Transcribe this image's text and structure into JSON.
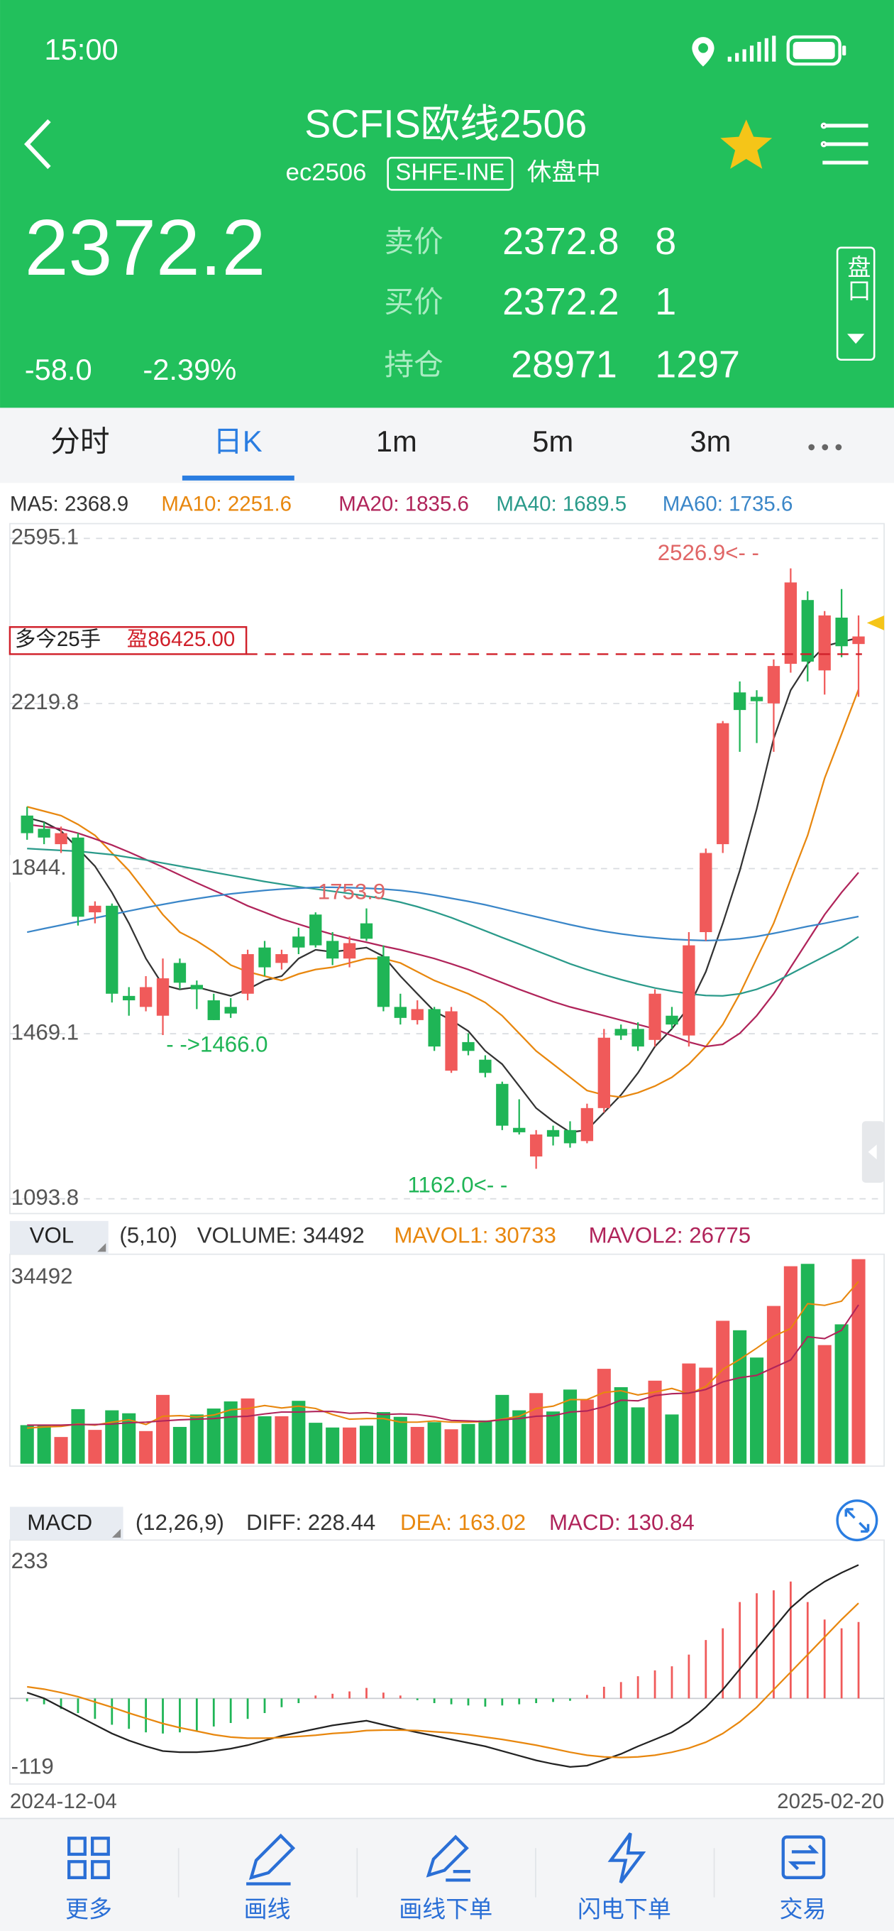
{
  "status_bar": {
    "time": "15:00"
  },
  "header": {
    "title": "SCFIS欧线2506",
    "code": "ec2506",
    "exchange": "SHFE-INE",
    "status": "休盘中"
  },
  "quote": {
    "last": 2372.2,
    "change": "-58.0",
    "change_pct": "-2.39%",
    "ask_label": "卖价",
    "ask": 2372.8,
    "ask_vol": 8,
    "bid_label": "买价",
    "bid": 2372.2,
    "bid_vol": 1,
    "oi_label": "持仓",
    "oi": 28971,
    "oi_change": 1297,
    "depth_button": "盘口"
  },
  "tabs": [
    "分时",
    "日K",
    "1m",
    "5m",
    "3m"
  ],
  "chart_data": [
    {
      "type": "candlestick",
      "categories": [
        "2024-12-04",
        null,
        null,
        null,
        null,
        null,
        null,
        null,
        null,
        null,
        null,
        null,
        null,
        null,
        null,
        null,
        null,
        null,
        null,
        null,
        null,
        null,
        null,
        null,
        null,
        null,
        null,
        null,
        null,
        null,
        null,
        null,
        null,
        null,
        null,
        null,
        null,
        null,
        null,
        null,
        null,
        null,
        null,
        null,
        null,
        null,
        null,
        null,
        null,
        "2025-02-20"
      ],
      "open": [
        1965,
        1935,
        1900,
        1915,
        1745,
        1760,
        1555,
        1530,
        1510,
        1630,
        1580,
        1545,
        1530,
        1560,
        1665,
        1630,
        1690,
        1740,
        1680,
        1640,
        1720,
        1645,
        1530,
        1500,
        1525,
        1385,
        1450,
        1410,
        1355,
        1255,
        1190,
        1250,
        1250,
        1225,
        1300,
        1480,
        1480,
        1455,
        1510,
        1465,
        1700,
        1900,
        2245,
        2235,
        2220,
        2310,
        2455,
        2295,
        2415,
        2355
      ],
      "high": [
        1985,
        1950,
        1940,
        1925,
        1770,
        1765,
        1575,
        1600,
        1640,
        1640,
        1590,
        1560,
        1550,
        1660,
        1680,
        1660,
        1710,
        1745,
        1700,
        1690,
        1753.9,
        1670,
        1560,
        1545,
        1530,
        1530,
        1470,
        1420,
        1360,
        1320,
        1250,
        1260,
        1270,
        1310,
        1480,
        1490,
        1495,
        1570,
        1530,
        1700,
        1890,
        2180,
        2270,
        2250,
        2320,
        2526.9,
        2475,
        2430,
        2480,
        2420
      ],
      "low": [
        1910,
        1900,
        1880,
        1715,
        1720,
        1540,
        1510,
        1520,
        1466.0,
        1570,
        1525,
        1500,
        1505,
        1545,
        1600,
        1615,
        1650,
        1665,
        1625,
        1620,
        1680,
        1520,
        1490,
        1490,
        1430,
        1380,
        1420,
        1370,
        1250,
        1240,
        1162.0,
        1215,
        1210,
        1220,
        1290,
        1455,
        1430,
        1440,
        1480,
        1440,
        1680,
        1880,
        2110,
        2130,
        2110,
        2290,
        2270,
        2240,
        2325,
        2235
      ],
      "close": [
        1925,
        1915,
        1925,
        1735,
        1760,
        1560,
        1545,
        1575,
        1595,
        1585,
        1570,
        1500,
        1515,
        1650,
        1620,
        1650,
        1665,
        1670,
        1640,
        1675,
        1685,
        1530,
        1505,
        1525,
        1440,
        1520,
        1430,
        1380,
        1260,
        1245,
        1240,
        1235,
        1220,
        1300,
        1460,
        1465,
        1440,
        1560,
        1490,
        1670,
        1880,
        2175,
        2205,
        2225,
        2305,
        2495,
        2315,
        2420,
        2350,
        2372.2
      ],
      "up_color": "#f05a5a",
      "down_color": "#1fb556",
      "ylim": [
        1093.8,
        2595.1
      ],
      "yticks": [
        1093.8,
        1469.1,
        {
          "value": 1844.4,
          "label": "1844."
        },
        2219.8,
        2595.1
      ],
      "grid": true,
      "series": [
        {
          "name": "MA5: 2368.9",
          "color": "#333333",
          "values": [
            1960,
            1950,
            1930,
            1890,
            1850,
            1790,
            1720,
            1640,
            1580,
            1570,
            1575,
            1565,
            1555,
            1570,
            1590,
            1600,
            1640,
            1660,
            1655,
            1660,
            1665,
            1645,
            1600,
            1560,
            1520,
            1500,
            1475,
            1430,
            1400,
            1350,
            1300,
            1270,
            1245,
            1250,
            1290,
            1330,
            1380,
            1440,
            1480,
            1530,
            1610,
            1720,
            1840,
            1980,
            2140,
            2250,
            2310,
            2350,
            2360,
            2368.9
          ]
        },
        {
          "name": "MA10: 2251.6",
          "color": "#e8870e",
          "values": [
            1985,
            1975,
            1965,
            1945,
            1920,
            1880,
            1840,
            1790,
            1740,
            1700,
            1680,
            1655,
            1625,
            1610,
            1600,
            1590,
            1605,
            1615,
            1620,
            1630,
            1640,
            1640,
            1630,
            1610,
            1590,
            1575,
            1560,
            1540,
            1510,
            1470,
            1430,
            1400,
            1370,
            1340,
            1330,
            1325,
            1335,
            1350,
            1370,
            1400,
            1440,
            1490,
            1560,
            1640,
            1720,
            1820,
            1920,
            2050,
            2150,
            2251.6
          ]
        },
        {
          "name": "MA20: 1835.6",
          "color": "#b0245a",
          "values": [
            1945,
            1940,
            1935,
            1925,
            1912,
            1898,
            1882,
            1865,
            1848,
            1830,
            1812,
            1795,
            1778,
            1760,
            1745,
            1730,
            1718,
            1706,
            1695,
            1685,
            1677,
            1668,
            1660,
            1650,
            1640,
            1628,
            1615,
            1600,
            1585,
            1570,
            1556,
            1542,
            1530,
            1520,
            1510,
            1500,
            1490,
            1480,
            1465,
            1450,
            1440,
            1445,
            1470,
            1510,
            1560,
            1620,
            1680,
            1740,
            1790,
            1835.6
          ]
        },
        {
          "name": "MA40: 1689.5",
          "color": "#2a9a8a",
          "values": [
            1890,
            1888,
            1886,
            1884,
            1880,
            1876,
            1870,
            1864,
            1857,
            1850,
            1843,
            1836,
            1829,
            1822,
            1815,
            1809,
            1803,
            1798,
            1793,
            1788,
            1782,
            1776,
            1768,
            1758,
            1746,
            1733,
            1718,
            1703,
            1688,
            1673,
            1658,
            1643,
            1628,
            1615,
            1603,
            1592,
            1582,
            1573,
            1566,
            1560,
            1556,
            1555,
            1560,
            1570,
            1585,
            1605,
            1625,
            1645,
            1665,
            1689.5
          ]
        },
        {
          "name": "MA60: 1735.6",
          "color": "#3a86c8",
          "values": [
            1700,
            1708,
            1716,
            1724,
            1732,
            1740,
            1748,
            1756,
            1763,
            1770,
            1776,
            1782,
            1787,
            1791,
            1795,
            1798,
            1800,
            1802,
            1802,
            1801,
            1800,
            1798,
            1795,
            1790,
            1784,
            1777,
            1770,
            1762,
            1753,
            1744,
            1735,
            1726,
            1717,
            1709,
            1702,
            1696,
            1691,
            1687,
            1684,
            1682,
            1681,
            1682,
            1685,
            1690,
            1697,
            1705,
            1713,
            1720,
            1728,
            1735.6
          ]
        }
      ],
      "annotations": [
        {
          "text": "2526.9<- -",
          "color": "#e06666"
        },
        {
          "text": "1753.9",
          "color": "#e06666"
        },
        {
          "text": "- ->1466.0",
          "color": "#1fb556"
        },
        {
          "text": "1162.0<- -",
          "color": "#1fb556"
        }
      ],
      "position_label": "多今25手",
      "position_pnl": "盈86425.00",
      "position_price": 2332,
      "position_color": "#d0202a"
    },
    {
      "type": "bar",
      "label": "VOL",
      "params": "(5,10)",
      "legend": [
        {
          "text": "VOLUME: 34492",
          "color": "#333333"
        }
      ],
      "values": [
        6500,
        6600,
        4500,
        9200,
        5700,
        9000,
        8500,
        5500,
        11600,
        6200,
        8300,
        9300,
        10500,
        11000,
        8000,
        8000,
        10600,
        6900,
        6100,
        6100,
        6400,
        8700,
        7900,
        6200,
        7000,
        5800,
        6700,
        7300,
        11600,
        9000,
        11900,
        8800,
        12500,
        10800,
        16000,
        12900,
        9500,
        14000,
        8300,
        16900,
        16200,
        24100,
        22500,
        17900,
        26600,
        33300,
        33700,
        20000,
        23500,
        34492
      ],
      "ylim": [
        0,
        34492
      ],
      "yticks": [
        34492
      ],
      "series": [
        {
          "name": "MAVOL1: 30733",
          "color": "#e8870e",
          "values": [
            6000,
            6200,
            6300,
            6700,
            6500,
            7000,
            7400,
            6600,
            8000,
            8100,
            7900,
            8200,
            9100,
            9300,
            9800,
            9400,
            9700,
            9300,
            8300,
            7500,
            7600,
            7600,
            7000,
            7000,
            7200,
            7000,
            7000,
            7100,
            7500,
            8000,
            9300,
            9700,
            10800,
            10800,
            12000,
            12300,
            11600,
            12100,
            12700,
            11800,
            13000,
            15900,
            17600,
            19500,
            21500,
            22800,
            27000,
            26700,
            27400,
            30733
          ]
        },
        {
          "name": "MAVOL2: 26775",
          "color": "#b0245a",
          "values": [
            6500,
            6500,
            6500,
            6600,
            6600,
            6700,
            6900,
            7000,
            7200,
            7400,
            7500,
            7600,
            7900,
            8000,
            8400,
            8700,
            8700,
            8800,
            8800,
            8500,
            8600,
            8300,
            8400,
            8300,
            7900,
            7300,
            7200,
            7100,
            7400,
            7600,
            8000,
            8100,
            8700,
            8900,
            9600,
            10700,
            10600,
            11500,
            11800,
            11900,
            12500,
            13800,
            14500,
            14900,
            16200,
            17500,
            21400,
            21100,
            22500,
            26775
          ]
        }
      ]
    },
    {
      "type": "macd",
      "label": "MACD",
      "params": "(12,26,9)",
      "values": [
        -5,
        -10,
        -18,
        -25,
        -35,
        -45,
        -52,
        -58,
        -60,
        -58,
        -55,
        -48,
        -42,
        -35,
        -25,
        -15,
        -8,
        5,
        8,
        12,
        18,
        10,
        5,
        -3,
        -8,
        -10,
        -12,
        -14,
        -12,
        -10,
        -8,
        -6,
        -4,
        6,
        20,
        28,
        38,
        48,
        55,
        75,
        100,
        120,
        165,
        180,
        185,
        200,
        165,
        135,
        120,
        130.84
      ],
      "legend": [
        {
          "text": "MACD: 130.84",
          "color": "#b0245a"
        }
      ],
      "ylim": [
        -119,
        233
      ],
      "yticks": [
        -119,
        233
      ],
      "series": [
        {
          "name": "DIFF: 228.44",
          "color": "#222222",
          "values": [
            10,
            0,
            -15,
            -30,
            -45,
            -60,
            -72,
            -82,
            -90,
            -92,
            -92,
            -90,
            -86,
            -80,
            -72,
            -64,
            -58,
            -52,
            -46,
            -42,
            -38,
            -45,
            -52,
            -58,
            -64,
            -70,
            -76,
            -82,
            -90,
            -98,
            -106,
            -112,
            -117,
            -115,
            -105,
            -95,
            -82,
            -70,
            -58,
            -40,
            -15,
            15,
            50,
            85,
            120,
            155,
            180,
            200,
            215,
            228.44
          ]
        },
        {
          "name": "DEA: 163.02",
          "color": "#e8870e",
          "values": [
            20,
            16,
            10,
            3,
            -6,
            -15,
            -25,
            -34,
            -43,
            -50,
            -56,
            -62,
            -66,
            -68,
            -68,
            -67,
            -65,
            -63,
            -60,
            -58,
            -55,
            -54,
            -54,
            -55,
            -57,
            -59,
            -62,
            -66,
            -70,
            -75,
            -80,
            -86,
            -92,
            -97,
            -100,
            -101,
            -100,
            -97,
            -92,
            -85,
            -75,
            -60,
            -40,
            -15,
            15,
            45,
            75,
            105,
            135,
            163.02
          ]
        }
      ]
    }
  ],
  "toolbar": [
    "更多",
    "画线",
    "画线下单",
    "闪电下单",
    "交易"
  ]
}
